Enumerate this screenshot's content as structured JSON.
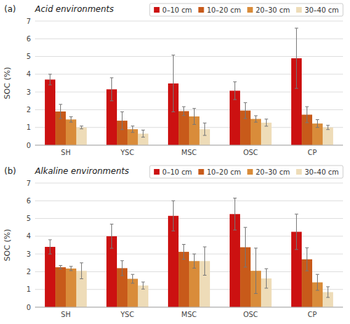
{
  "chart_data": [
    {
      "type": "bar",
      "title": "Acid environments",
      "annotations": [
        "(a)"
      ],
      "ylabel": "SOC (%)",
      "categories": [
        "SH",
        "YSC",
        "MSC",
        "OSC",
        "CP"
      ],
      "series": [
        {
          "name": "0–10 cm",
          "color": "#cc1111",
          "values": [
            3.7,
            3.15,
            3.48,
            3.07,
            4.9
          ],
          "errors": [
            0.3,
            0.65,
            1.6,
            0.5,
            1.7
          ]
        },
        {
          "name": "10–20 cm",
          "color": "#c85a1a",
          "values": [
            1.9,
            1.38,
            1.92,
            1.95,
            1.72
          ],
          "errors": [
            0.4,
            0.5,
            0.25,
            0.45,
            0.45
          ]
        },
        {
          "name": "20–30 cm",
          "color": "#d98c3a",
          "values": [
            1.45,
            0.9,
            1.62,
            1.48,
            1.22
          ],
          "errors": [
            0.15,
            0.18,
            0.45,
            0.18,
            0.22
          ]
        },
        {
          "name": "30–40 cm",
          "color": "#eedcb8",
          "values": [
            1.0,
            0.65,
            0.9,
            1.27,
            1.0
          ],
          "errors": [
            0.08,
            0.2,
            0.35,
            0.2,
            0.12
          ]
        }
      ],
      "ylim": [
        0,
        7
      ],
      "yticks": [
        0,
        1,
        2,
        3,
        4,
        5,
        6,
        7
      ],
      "grid": true,
      "legend": "upper right"
    },
    {
      "type": "bar",
      "title": "Alkaline environments",
      "annotations": [
        "(b)"
      ],
      "ylabel": "SOC (%)",
      "categories": [
        "SH",
        "YSC",
        "MSC",
        "OSC",
        "CP"
      ],
      "series": [
        {
          "name": "0–10 cm",
          "color": "#cc1111",
          "values": [
            3.4,
            4.0,
            5.15,
            5.25,
            4.25
          ],
          "errors": [
            0.4,
            0.68,
            0.85,
            0.9,
            1.0
          ]
        },
        {
          "name": "10–20 cm",
          "color": "#c85a1a",
          "values": [
            2.25,
            2.2,
            3.12,
            3.38,
            2.7
          ],
          "errors": [
            0.1,
            0.42,
            0.42,
            1.12,
            0.65
          ]
        },
        {
          "name": "20–30 cm",
          "color": "#d98c3a",
          "values": [
            2.18,
            1.6,
            2.6,
            2.05,
            1.4
          ],
          "errors": [
            0.12,
            0.25,
            0.4,
            1.28,
            0.45
          ]
        },
        {
          "name": "30–40 cm",
          "color": "#eedcb8",
          "values": [
            2.05,
            1.22,
            2.6,
            1.62,
            0.85
          ],
          "errors": [
            0.45,
            0.2,
            0.8,
            0.55,
            0.3
          ]
        }
      ],
      "ylim": [
        0,
        7
      ],
      "yticks": [
        0,
        1,
        2,
        3,
        4,
        5,
        6,
        7
      ],
      "grid": true,
      "legend": "upper right"
    }
  ]
}
